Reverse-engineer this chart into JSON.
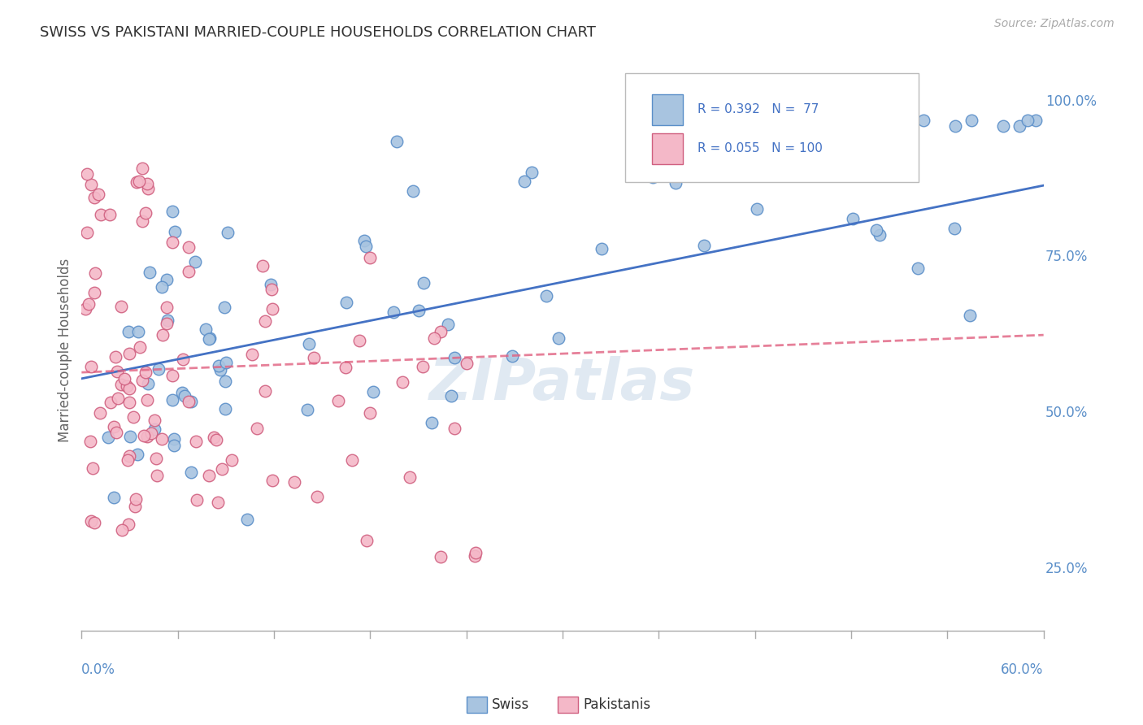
{
  "title": "SWISS VS PAKISTANI MARRIED-COUPLE HOUSEHOLDS CORRELATION CHART",
  "source": "Source: ZipAtlas.com",
  "ylabel": "Married-couple Households",
  "ytick_labels": [
    "25.0%",
    "50.0%",
    "75.0%",
    "100.0%"
  ],
  "ytick_values": [
    0.25,
    0.5,
    0.75,
    1.0
  ],
  "xmin": 0.0,
  "xmax": 0.6,
  "ymin": 0.15,
  "ymax": 1.05,
  "swiss_color": "#a8c4e0",
  "swiss_edge_color": "#5b8fc9",
  "swiss_line_color": "#4472c4",
  "pak_color": "#f4b8c8",
  "pak_edge_color": "#d06080",
  "pak_line_color": "#e06080",
  "watermark": "ZIPatlas",
  "grid_color": "#cccccc",
  "title_color": "#333333",
  "axis_label_color": "#5b8fc9",
  "background_color": "#ffffff",
  "swiss_R": 0.392,
  "swiss_N": 77,
  "pak_R": 0.055,
  "pak_N": 100,
  "swiss_line_x0": 0.0,
  "swiss_line_y0": 0.555,
  "swiss_line_x1": 0.6,
  "swiss_line_y1": 0.865,
  "pak_line_x0": 0.0,
  "pak_line_y0": 0.565,
  "pak_line_x1": 0.6,
  "pak_line_y1": 0.625
}
